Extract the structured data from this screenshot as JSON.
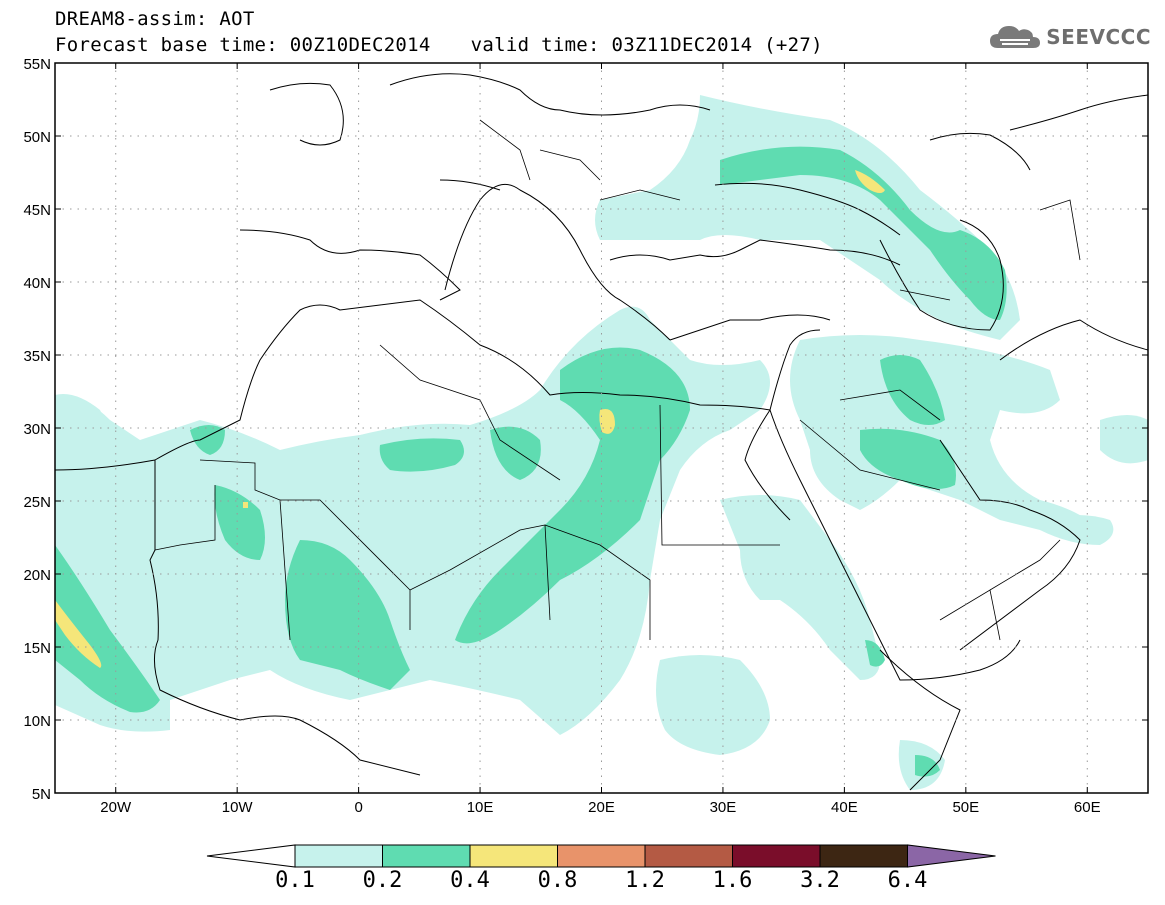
{
  "header": {
    "title": "DREAM8-assim: AOT",
    "base_time": "Forecast base time: 00Z10DEC2014",
    "valid_time": "valid time: 03Z11DEC2014 (+27)"
  },
  "logo": {
    "text": "SEEVCCC",
    "icon": "cloud-icon"
  },
  "map": {
    "lat_labels": [
      "55N",
      "50N",
      "45N",
      "40N",
      "35N",
      "30N",
      "25N",
      "20N",
      "15N",
      "10N",
      "5N"
    ],
    "lon_labels": [
      "20W",
      "10W",
      "0",
      "10E",
      "20E",
      "30E",
      "40E",
      "50E",
      "60E"
    ],
    "lon_range": [
      -25,
      65
    ],
    "lat_range": [
      5,
      55
    ],
    "grid": "dotted",
    "colors": {
      "aot_0_1": "#c6f2ec",
      "aot_0_2": "#5fdcb1",
      "aot_0_4": "#f5e67a",
      "coast": "#000000"
    }
  },
  "colorbar": {
    "labels": [
      "0.1",
      "0.2",
      "0.4",
      "0.8",
      "1.2",
      "1.6",
      "3.2",
      "6.4"
    ],
    "colors": [
      "#ffffff",
      "#c6f2ec",
      "#5fdcb1",
      "#f5e67a",
      "#e8936a",
      "#b45a44",
      "#7a0d2a",
      "#3d2613",
      "#8b66a6"
    ]
  }
}
